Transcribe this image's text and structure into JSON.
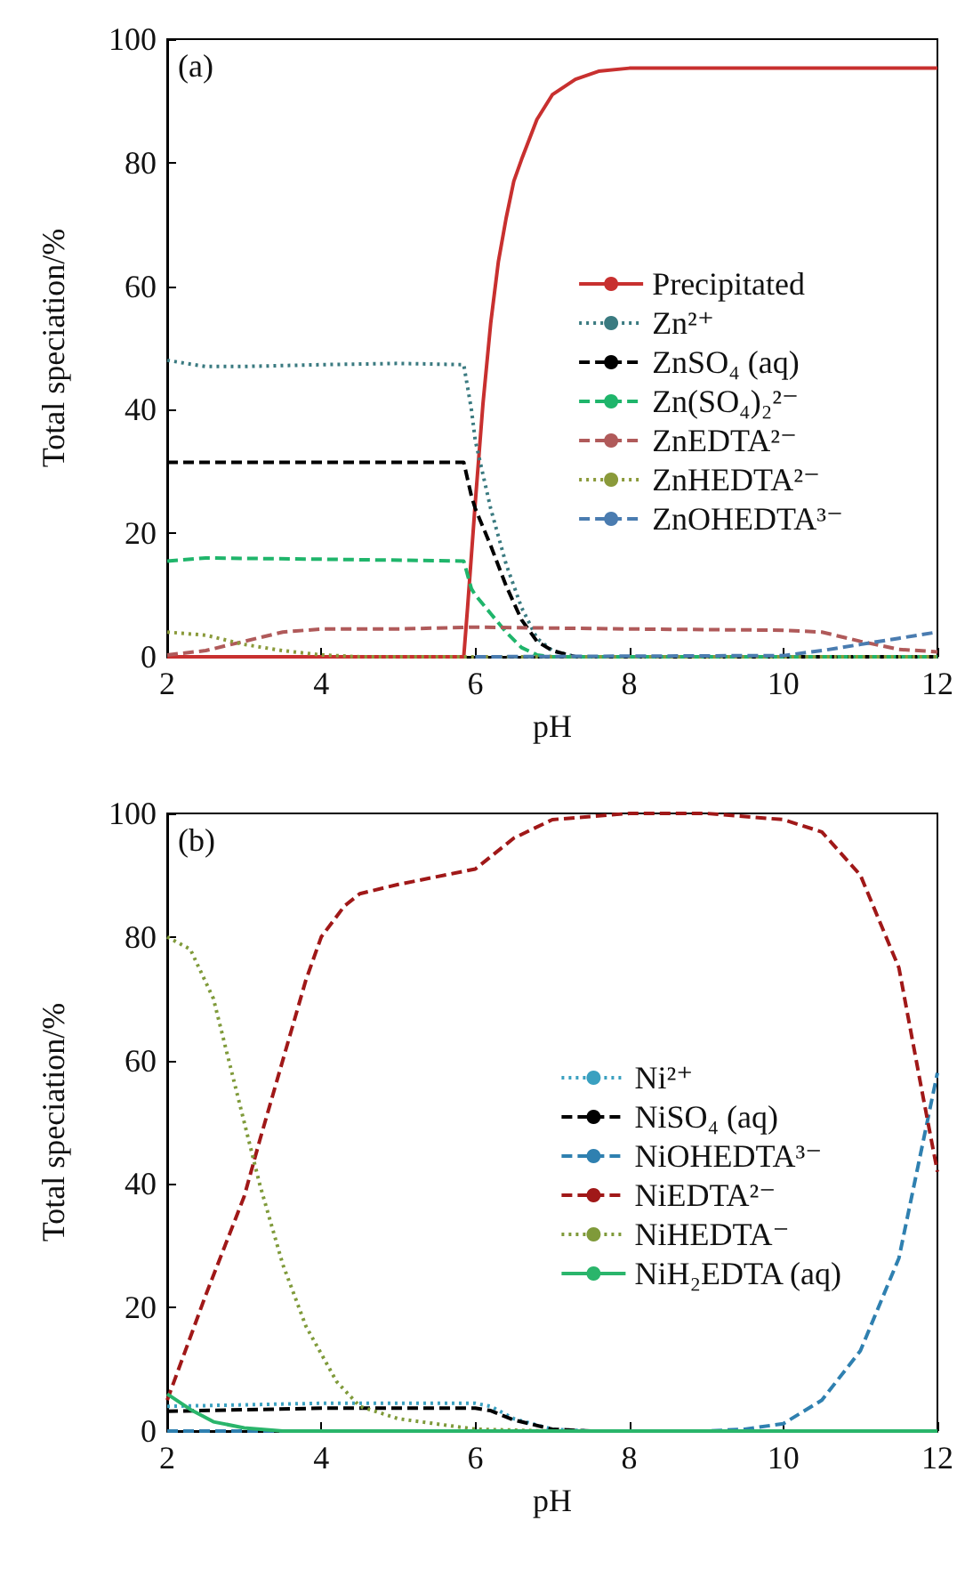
{
  "chart_data": [
    {
      "type": "line",
      "xlabel": "pH",
      "ylabel": "Total speciation/%",
      "annotations": [
        "(a)"
      ],
      "xlim": [
        2,
        12
      ],
      "ylim": [
        0,
        100
      ],
      "xticks": [
        2,
        4,
        6,
        8,
        10,
        12
      ],
      "yticks": [
        0,
        20,
        40,
        60,
        80,
        100
      ],
      "grid": false,
      "legend": "right",
      "marker": "none",
      "series": [
        {
          "name": "Precipitated",
          "color": "#c8302f",
          "line_style": "solid",
          "x": [
            2,
            5.85,
            5.9,
            6.0,
            6.1,
            6.2,
            6.3,
            6.4,
            6.5,
            6.6,
            6.8,
            7.0,
            7.3,
            7.6,
            8,
            12
          ],
          "values": [
            0,
            0,
            8,
            25,
            41,
            54,
            64,
            71,
            77,
            80.5,
            87,
            91,
            93.5,
            94.8,
            95.3,
            95.3
          ]
        },
        {
          "name": "Zn²⁺",
          "color": "#3a7a80",
          "line_style": "dotted",
          "x": [
            2,
            2.5,
            3,
            4,
            5,
            5.85,
            5.95,
            6,
            6.2,
            6.4,
            6.6,
            6.8,
            7,
            7.3,
            12
          ],
          "values": [
            48,
            47,
            47,
            47.3,
            47.5,
            47.3,
            40,
            35,
            24,
            15,
            8,
            3,
            1,
            0,
            0
          ]
        },
        {
          "name": "ZnSO₄ (aq)",
          "color": "#000000",
          "line_style": "dashed",
          "x": [
            2,
            5.85,
            5.95,
            6,
            6.2,
            6.4,
            6.6,
            6.8,
            7,
            7.3,
            12
          ],
          "values": [
            31.5,
            31.5,
            26,
            24,
            18,
            11.5,
            6,
            2.5,
            1,
            0,
            0
          ]
        },
        {
          "name": "Zn(SO₄)₂²⁻",
          "color": "#1fb56b",
          "line_style": "dashed",
          "x": [
            2,
            2.5,
            4,
            5.85,
            5.95,
            6,
            6.2,
            6.4,
            6.6,
            6.8,
            7,
            12
          ],
          "values": [
            15.5,
            16,
            15.8,
            15.5,
            11,
            10,
            7,
            4,
            1.5,
            0.3,
            0,
            0
          ]
        },
        {
          "name": "ZnEDTA²⁻",
          "color": "#b05a5a",
          "line_style": "dashed",
          "x": [
            2,
            2.5,
            3,
            3.5,
            4,
            5,
            6,
            8,
            10,
            10.5,
            11,
            11.5,
            12
          ],
          "values": [
            0.3,
            1,
            2.5,
            4,
            4.5,
            4.5,
            4.8,
            4.5,
            4.3,
            4,
            2.5,
            1.2,
            0.8
          ]
        },
        {
          "name": "ZnHEDTA²⁻",
          "color": "#8a9a3a",
          "line_style": "dotted",
          "x": [
            2,
            2.5,
            3,
            3.5,
            4,
            4.5,
            12
          ],
          "values": [
            4,
            3.5,
            2,
            1,
            0.3,
            0,
            0
          ]
        },
        {
          "name": "ZnOHEDTA³⁻",
          "color": "#4a7cb0",
          "line_style": "dashed",
          "x": [
            6,
            10,
            10.5,
            11,
            11.5,
            12
          ],
          "values": [
            0,
            0.2,
            1,
            2,
            3,
            4
          ]
        }
      ]
    },
    {
      "type": "line",
      "xlabel": "pH",
      "ylabel": "Total speciation/%",
      "annotations": [
        "(b)"
      ],
      "xlim": [
        2,
        12
      ],
      "ylim": [
        0,
        100
      ],
      "xticks": [
        2,
        4,
        6,
        8,
        10,
        12
      ],
      "yticks": [
        0,
        20,
        40,
        60,
        80,
        100
      ],
      "grid": false,
      "legend": "right",
      "marker": "none",
      "series": [
        {
          "name": "Ni²⁺",
          "color": "#3aa0c0",
          "line_style": "dotted",
          "x": [
            2,
            4,
            6,
            6.2,
            6.5,
            7,
            7.5,
            12
          ],
          "values": [
            4,
            4.5,
            4.5,
            4,
            2,
            0.3,
            0,
            0
          ]
        },
        {
          "name": "NiSO₄ (aq)",
          "color": "#000000",
          "line_style": "dashed",
          "x": [
            2,
            4,
            6,
            6.2,
            6.5,
            7,
            7.5,
            12
          ],
          "values": [
            3.2,
            3.7,
            3.7,
            3.3,
            1.8,
            0.3,
            0,
            0
          ]
        },
        {
          "name": "NiOHEDTA³⁻",
          "color": "#2f80b0",
          "line_style": "dashed",
          "x": [
            2,
            9,
            9.5,
            10,
            10.5,
            11,
            11.5,
            12
          ],
          "values": [
            0,
            0,
            0.3,
            1.2,
            5,
            13,
            28,
            58
          ]
        },
        {
          "name": "NiEDTA²⁻",
          "color": "#a01818",
          "line_style": "dashed",
          "x": [
            2,
            2.5,
            3,
            3.2,
            3.5,
            3.8,
            4,
            4.3,
            4.5,
            5,
            6,
            6.5,
            7,
            8,
            9,
            10,
            10.5,
            11,
            11.5,
            11.8,
            12
          ],
          "values": [
            5,
            22,
            38,
            47,
            60,
            73,
            80,
            85,
            87,
            88.5,
            91,
            96,
            99,
            100,
            100,
            99,
            97,
            90,
            75,
            55,
            42
          ]
        },
        {
          "name": "NiHEDTA⁻",
          "color": "#7f9a3a",
          "line_style": "dotted",
          "x": [
            2,
            2.3,
            2.6,
            2.8,
            3,
            3.2,
            3.5,
            3.8,
            4.2,
            4.5,
            5,
            6,
            7,
            12
          ],
          "values": [
            80,
            78,
            70,
            60,
            50,
            40,
            27,
            17,
            8,
            4,
            2,
            0.3,
            0,
            0
          ]
        },
        {
          "name": "NiH₂EDTA (aq)",
          "color": "#2ab56b",
          "line_style": "solid",
          "x": [
            2,
            2.3,
            2.6,
            3,
            3.5,
            12
          ],
          "values": [
            6,
            3.5,
            1.5,
            0.5,
            0,
            0
          ]
        }
      ]
    }
  ]
}
